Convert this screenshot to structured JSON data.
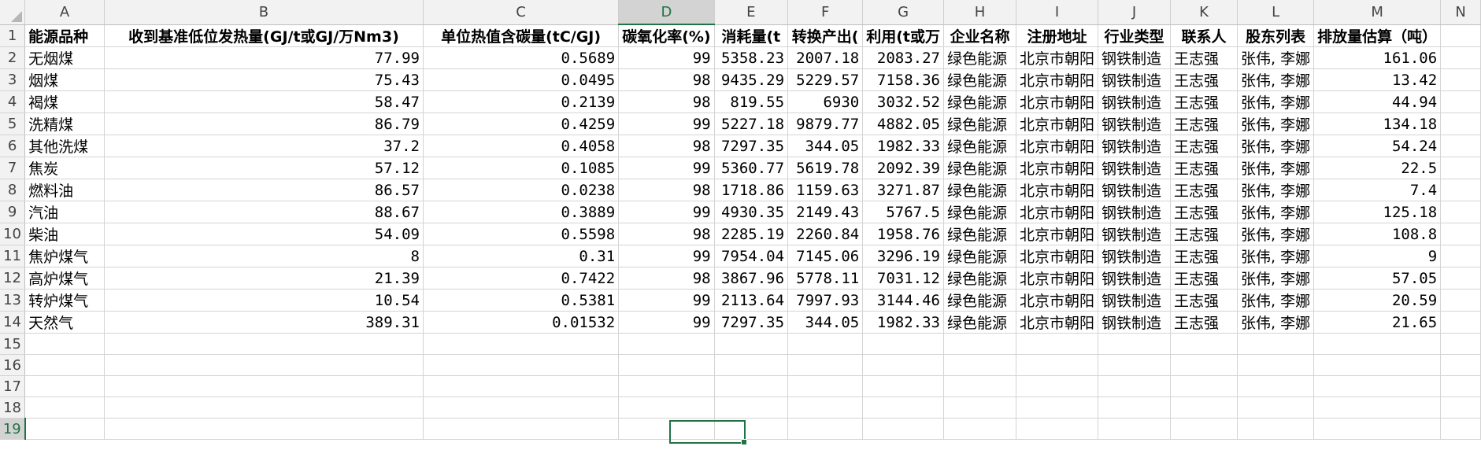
{
  "columns": [
    "A",
    "B",
    "C",
    "D",
    "E",
    "F",
    "G",
    "H",
    "I",
    "J",
    "K",
    "L",
    "M",
    "N"
  ],
  "selected_column": "D",
  "selected_row": 19,
  "row_numbers": [
    "1",
    "2",
    "3",
    "4",
    "5",
    "6",
    "7",
    "8",
    "9",
    "10",
    "11",
    "12",
    "13",
    "14",
    "15",
    "16",
    "17",
    "18",
    "19"
  ],
  "headers": {
    "A": "能源品种",
    "B": "收到基准低位发热量(GJ/t或GJ/万Nm3)",
    "C": "单位热值含碳量(tC/GJ)",
    "D": "碳氧化率(%)",
    "E": "消耗量(t",
    "F": "转换产出(",
    "G": "利用(t或万",
    "H": "企业名称",
    "I": "注册地址",
    "J": "行业类型",
    "K": "联系人",
    "L": "股东列表",
    "M": "排放量估算（吨）"
  },
  "rows": [
    {
      "A": "无烟煤",
      "B": "77.99",
      "C": "0.5689",
      "D": "99",
      "E": "5358.23",
      "F": "2007.18",
      "G": "2083.27",
      "H": "绿色能源",
      "I": "北京市朝阳",
      "J": "钢铁制造",
      "K": "王志强",
      "L": "张伟, 李娜",
      "M": "161.06"
    },
    {
      "A": "烟煤",
      "B": "75.43",
      "C": "0.0495",
      "D": "98",
      "E": "9435.29",
      "F": "5229.57",
      "G": "7158.36",
      "H": "绿色能源",
      "I": "北京市朝阳",
      "J": "钢铁制造",
      "K": "王志强",
      "L": "张伟, 李娜",
      "M": "13.42"
    },
    {
      "A": "褐煤",
      "B": "58.47",
      "C": "0.2139",
      "D": "98",
      "E": "819.55",
      "F": "6930",
      "G": "3032.52",
      "H": "绿色能源",
      "I": "北京市朝阳",
      "J": "钢铁制造",
      "K": "王志强",
      "L": "张伟, 李娜",
      "M": "44.94"
    },
    {
      "A": "洗精煤",
      "B": "86.79",
      "C": "0.4259",
      "D": "99",
      "E": "5227.18",
      "F": "9879.77",
      "G": "4882.05",
      "H": "绿色能源",
      "I": "北京市朝阳",
      "J": "钢铁制造",
      "K": "王志强",
      "L": "张伟, 李娜",
      "M": "134.18"
    },
    {
      "A": "其他洗煤",
      "B": "37.2",
      "C": "0.4058",
      "D": "98",
      "E": "7297.35",
      "F": "344.05",
      "G": "1982.33",
      "H": "绿色能源",
      "I": "北京市朝阳",
      "J": "钢铁制造",
      "K": "王志强",
      "L": "张伟, 李娜",
      "M": "54.24"
    },
    {
      "A": "焦炭",
      "B": "57.12",
      "C": "0.1085",
      "D": "99",
      "E": "5360.77",
      "F": "5619.78",
      "G": "2092.39",
      "H": "绿色能源",
      "I": "北京市朝阳",
      "J": "钢铁制造",
      "K": "王志强",
      "L": "张伟, 李娜",
      "M": "22.5"
    },
    {
      "A": "燃料油",
      "B": "86.57",
      "C": "0.0238",
      "D": "98",
      "E": "1718.86",
      "F": "1159.63",
      "G": "3271.87",
      "H": "绿色能源",
      "I": "北京市朝阳",
      "J": "钢铁制造",
      "K": "王志强",
      "L": "张伟, 李娜",
      "M": "7.4"
    },
    {
      "A": "汽油",
      "B": "88.67",
      "C": "0.3889",
      "D": "99",
      "E": "4930.35",
      "F": "2149.43",
      "G": "5767.5",
      "H": "绿色能源",
      "I": "北京市朝阳",
      "J": "钢铁制造",
      "K": "王志强",
      "L": "张伟, 李娜",
      "M": "125.18"
    },
    {
      "A": "柴油",
      "B": "54.09",
      "C": "0.5598",
      "D": "98",
      "E": "2285.19",
      "F": "2260.84",
      "G": "1958.76",
      "H": "绿色能源",
      "I": "北京市朝阳",
      "J": "钢铁制造",
      "K": "王志强",
      "L": "张伟, 李娜",
      "M": "108.8"
    },
    {
      "A": "焦炉煤气",
      "B": "8",
      "C": "0.31",
      "D": "99",
      "E": "7954.04",
      "F": "7145.06",
      "G": "3296.19",
      "H": "绿色能源",
      "I": "北京市朝阳",
      "J": "钢铁制造",
      "K": "王志强",
      "L": "张伟, 李娜",
      "M": "9"
    },
    {
      "A": "高炉煤气",
      "B": "21.39",
      "C": "0.7422",
      "D": "98",
      "E": "3867.96",
      "F": "5778.11",
      "G": "7031.12",
      "H": "绿色能源",
      "I": "北京市朝阳",
      "J": "钢铁制造",
      "K": "王志强",
      "L": "张伟, 李娜",
      "M": "57.05"
    },
    {
      "A": "转炉煤气",
      "B": "10.54",
      "C": "0.5381",
      "D": "99",
      "E": "2113.64",
      "F": "7997.93",
      "G": "3144.46",
      "H": "绿色能源",
      "I": "北京市朝阳",
      "J": "钢铁制造",
      "K": "王志强",
      "L": "张伟, 李娜",
      "M": "20.59"
    },
    {
      "A": "天然气",
      "B": "389.31",
      "C": "0.01532",
      "D": "99",
      "E": "7297.35",
      "F": "344.05",
      "G": "1982.33",
      "H": "绿色能源",
      "I": "北京市朝阳",
      "J": "钢铁制造",
      "K": "王志强",
      "L": "张伟, 李娜",
      "M": "21.65"
    }
  ],
  "empty_row_count": 5
}
